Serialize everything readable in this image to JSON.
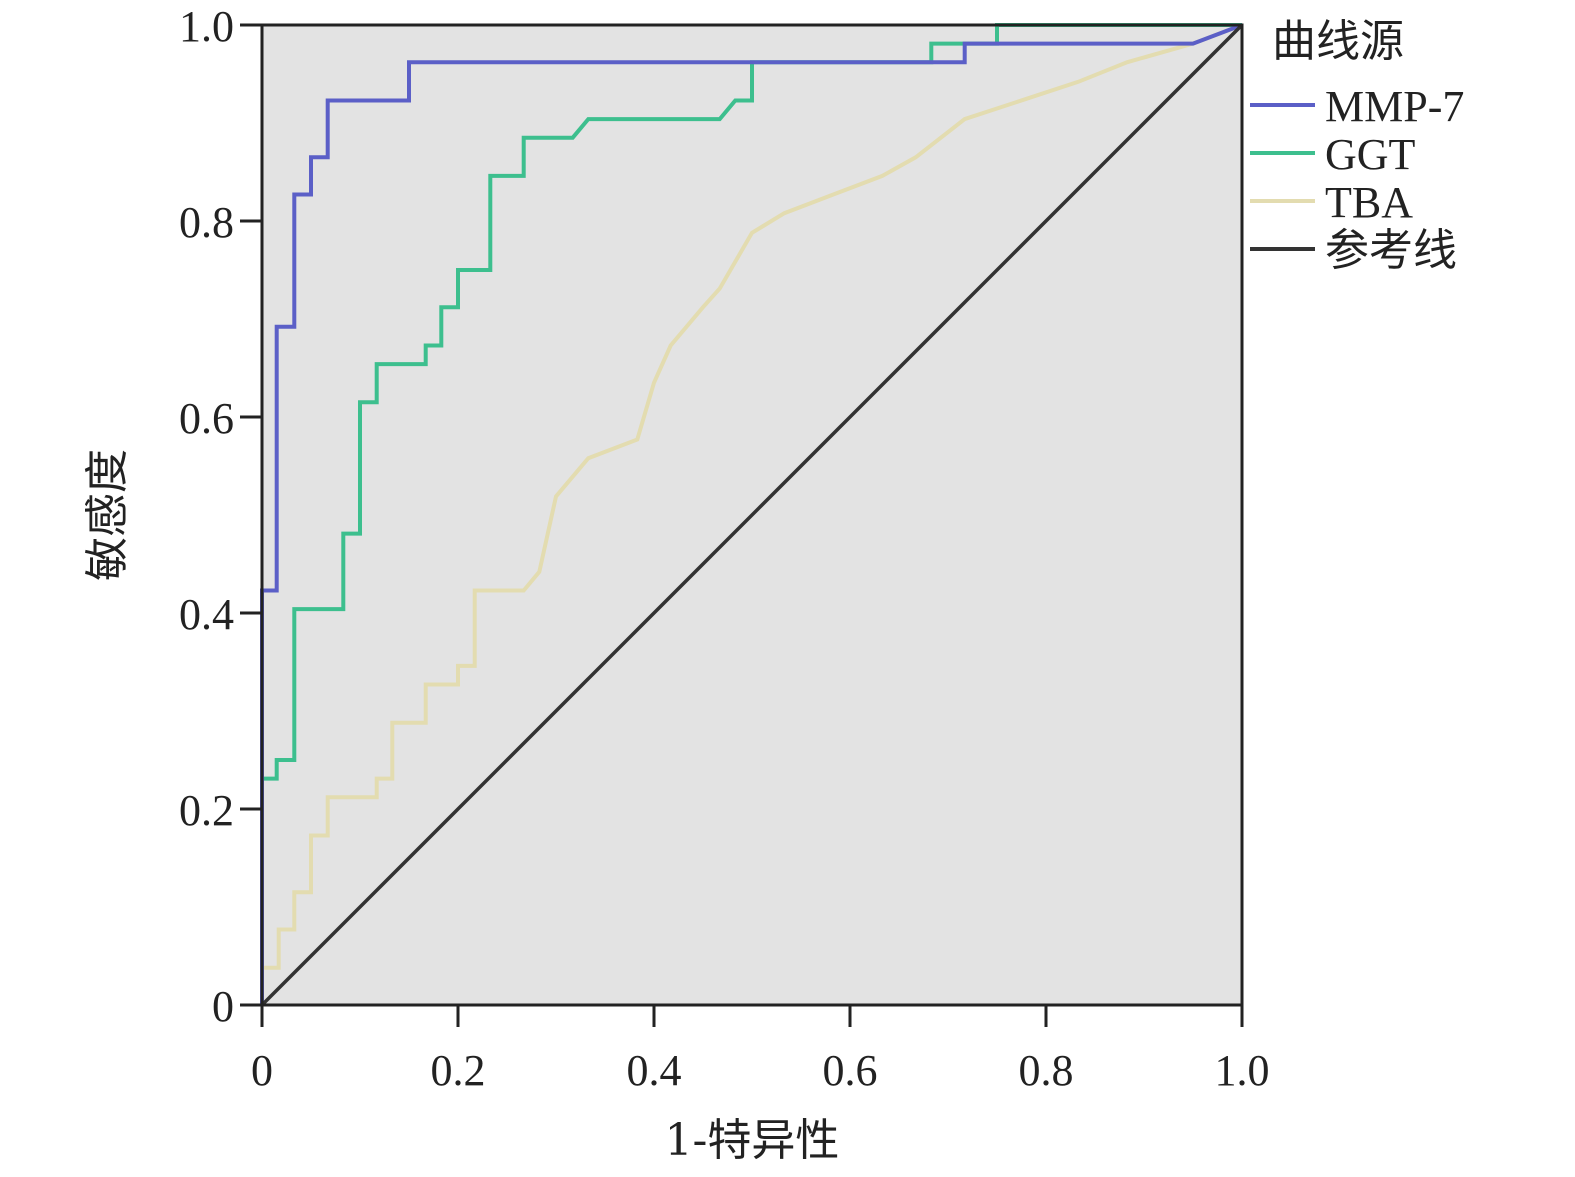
{
  "chart_data": {
    "type": "line",
    "title": "",
    "xlabel": "1-特异性",
    "ylabel": "敏感度",
    "xlim": [
      0,
      1
    ],
    "ylim": [
      0,
      1
    ],
    "x_ticks": [
      "0",
      "0.2",
      "0.4",
      "0.6",
      "0.8",
      "1.0"
    ],
    "y_ticks": [
      "0",
      "0.2",
      "0.4",
      "0.6",
      "0.8",
      "1.0"
    ],
    "grid": false,
    "legend_position": "right",
    "legend_title": "曲线源",
    "colors": {
      "background": "#e3e3e3",
      "MMP-7": "#5b5fc7",
      "GGT": "#3dbf8e",
      "TBA": "#e3dcb0",
      "参考线": "#333333"
    },
    "series": [
      {
        "name": "MMP-7",
        "x": [
          0,
          0,
          0.015,
          0.015,
          0.033,
          0.033,
          0.05,
          0.05,
          0.067,
          0.067,
          0.15,
          0.15,
          0.5,
          0.5,
          0.717,
          0.717,
          0.95,
          1.0
        ],
        "y": [
          0,
          0.423,
          0.423,
          0.692,
          0.692,
          0.827,
          0.827,
          0.865,
          0.865,
          0.923,
          0.923,
          0.962,
          0.962,
          0.962,
          0.962,
          0.981,
          0.981,
          1.0
        ]
      },
      {
        "name": "GGT",
        "x": [
          0,
          0,
          0.015,
          0.015,
          0.033,
          0.033,
          0.083,
          0.083,
          0.1,
          0.1,
          0.117,
          0.117,
          0.167,
          0.167,
          0.183,
          0.183,
          0.2,
          0.2,
          0.233,
          0.233,
          0.267,
          0.267,
          0.317,
          0.333,
          0.467,
          0.483,
          0.5,
          0.5,
          0.683,
          0.683,
          0.717,
          0.717,
          0.75,
          0.75,
          1.0
        ],
        "y": [
          0,
          0.231,
          0.231,
          0.25,
          0.25,
          0.404,
          0.404,
          0.481,
          0.481,
          0.615,
          0.615,
          0.654,
          0.654,
          0.673,
          0.673,
          0.712,
          0.712,
          0.75,
          0.75,
          0.846,
          0.846,
          0.885,
          0.885,
          0.904,
          0.904,
          0.923,
          0.923,
          0.962,
          0.962,
          0.981,
          0.981,
          0.981,
          0.981,
          1.0,
          1.0
        ]
      },
      {
        "name": "TBA",
        "x": [
          0,
          0,
          0.017,
          0.017,
          0.033,
          0.033,
          0.05,
          0.05,
          0.067,
          0.067,
          0.117,
          0.117,
          0.133,
          0.133,
          0.167,
          0.167,
          0.2,
          0.2,
          0.217,
          0.217,
          0.267,
          0.283,
          0.283,
          0.3,
          0.3,
          0.333,
          0.333,
          0.383,
          0.383,
          0.4,
          0.4,
          0.417,
          0.417,
          0.45,
          0.45,
          0.467,
          0.467,
          0.5,
          0.5,
          0.533,
          0.533,
          0.583,
          0.583,
          0.633,
          0.633,
          0.667,
          0.667,
          0.717,
          0.717,
          0.833,
          0.833,
          0.883,
          0.883,
          0.95,
          0.95,
          1.0
        ],
        "y": [
          0,
          0.038,
          0.038,
          0.077,
          0.077,
          0.115,
          0.115,
          0.173,
          0.173,
          0.212,
          0.212,
          0.231,
          0.231,
          0.288,
          0.288,
          0.327,
          0.327,
          0.346,
          0.346,
          0.423,
          0.423,
          0.442,
          0.442,
          0.519,
          0.519,
          0.558,
          0.558,
          0.577,
          0.577,
          0.635,
          0.635,
          0.673,
          0.673,
          0.712,
          0.712,
          0.731,
          0.731,
          0.788,
          0.788,
          0.808,
          0.808,
          0.827,
          0.827,
          0.846,
          0.846,
          0.865,
          0.865,
          0.904,
          0.904,
          0.942,
          0.942,
          0.962,
          0.962,
          0.981,
          0.981,
          1.0
        ]
      },
      {
        "name": "参考线",
        "x": [
          0,
          1
        ],
        "y": [
          0,
          1
        ]
      }
    ]
  }
}
